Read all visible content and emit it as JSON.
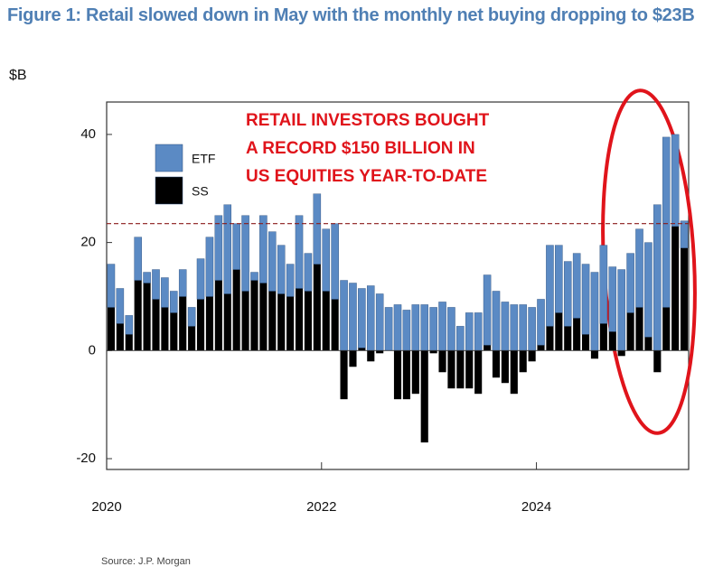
{
  "chart_data": {
    "type": "stacked_bar",
    "title": "Figure 1: Retail slowed down in May with the monthly net buying dropping to $23B",
    "y_label": "$B",
    "annotation": [
      "RETAIL INVESTORS BOUGHT",
      "A RECORD $150 BILLION IN",
      "US EQUITIES YEAR-TO-DATE"
    ],
    "source": "Source: J.P. Morgan",
    "categories": [
      "2020",
      null,
      null,
      null,
      null,
      null,
      null,
      null,
      null,
      null,
      null,
      null,
      null,
      null,
      null,
      null,
      null,
      null,
      null,
      null,
      null,
      null,
      null,
      null,
      "2022",
      null,
      null,
      null,
      null,
      null,
      null,
      null,
      null,
      null,
      null,
      null,
      null,
      null,
      null,
      null,
      null,
      null,
      null,
      null,
      null,
      null,
      null,
      null,
      "2024",
      null,
      null,
      null,
      null,
      null,
      null,
      null,
      null,
      null,
      null,
      null,
      null,
      null,
      null,
      null,
      null
    ],
    "series": [
      {
        "name": "ETF",
        "color": "#5b8ac4",
        "values": [
          8,
          6.5,
          3.5,
          8,
          2,
          5.5,
          5.5,
          4,
          5,
          3.5,
          7.5,
          11,
          12,
          16.5,
          8.5,
          14,
          1.5,
          12.5,
          11,
          9,
          6,
          13.5,
          7,
          13,
          11.5,
          14,
          13,
          12.5,
          11,
          12,
          10.5,
          8,
          8.5,
          7.5,
          8.5,
          8.5,
          8,
          9,
          8,
          4.5,
          7,
          7,
          13,
          11,
          9,
          8.5,
          8.5,
          8,
          8.5,
          15,
          12.5,
          12,
          12,
          13,
          14.5,
          14.5,
          12,
          15,
          11,
          14.5,
          17.5,
          27,
          31.5,
          17,
          5
        ]
      },
      {
        "name": "SS",
        "color": "#000000",
        "values": [
          8,
          5,
          3,
          13,
          12.5,
          9.5,
          8,
          7,
          10,
          4.5,
          9.5,
          10,
          13,
          10.5,
          15,
          11,
          13,
          12.5,
          11,
          10.5,
          10,
          11.5,
          11,
          16,
          11,
          9.5,
          -9,
          -3,
          0.5,
          -2,
          -0.5,
          0,
          -9,
          -9,
          -8,
          -17,
          -0.5,
          -4,
          -7,
          -7,
          -7,
          -8,
          1,
          -5,
          -6,
          -8,
          -4,
          -2,
          1,
          4.5,
          7,
          4.5,
          6,
          3,
          -1.5,
          5,
          3.5,
          -1,
          7,
          8,
          2.5,
          -4,
          8,
          23,
          19
        ]
      }
    ],
    "reference_line": 23.5,
    "ylim": [
      -22,
      46
    ],
    "yticks": [
      -20,
      0,
      20,
      40
    ],
    "grid": false,
    "legend": "upper left"
  }
}
